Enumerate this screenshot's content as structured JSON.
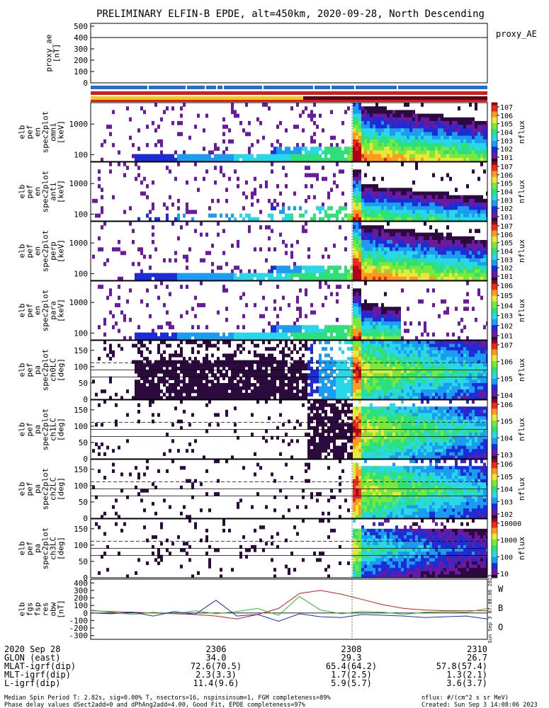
{
  "title": "PRELIMINARY ELFIN-B EPDE, alt=450km, 2020-09-28, North Descending",
  "colors": {
    "spectrogram_scale": [
      "#ffffff",
      "#2d0a3e",
      "#6a1aa0",
      "#1c2cd6",
      "#1c9cf0",
      "#28d8e8",
      "#2de07a",
      "#78e83a",
      "#e8e83a",
      "#ff9a1e",
      "#ee2a18",
      "#b0001a"
    ],
    "orbit_bar_blue": "#1a6fd8",
    "orbit_bar_yellow": "#f2c81a",
    "orbit_bar_red": "#e01818",
    "orbit_bar_dark": "#5a0014",
    "fgm_w": "#dd1a1a",
    "fgm_b": "#2fbf2f",
    "fgm_o": "#1a28dd"
  },
  "panels": {
    "proxy_ae": {
      "ylabel": "proxy_ae\n[nT]",
      "legend": "proxy_AE",
      "yticks": [
        "500",
        "400",
        "300",
        "200",
        "100",
        "0"
      ]
    },
    "spectrograms": [
      {
        "ylabel": "elb\npef\nen\nspec2plot\nomni\n[keV]",
        "yticks": [
          "1000",
          "100"
        ],
        "cbar_ticks": [
          "107",
          "106",
          "105",
          "104",
          "103",
          "102",
          "101"
        ],
        "cbar_label": "nflux"
      },
      {
        "ylabel": "elb\npef\nen\nspec2plot\nanti\n[keV]",
        "yticks": [
          "1000",
          "100"
        ],
        "cbar_ticks": [
          "107",
          "106",
          "105",
          "104",
          "103",
          "102",
          "101"
        ],
        "cbar_label": "nflux"
      },
      {
        "ylabel": "elb\npef\nen\nspec2plot\nperp\n[keV]",
        "yticks": [
          "1000",
          "100"
        ],
        "cbar_ticks": [
          "107",
          "106",
          "105",
          "104",
          "103",
          "102",
          "101"
        ],
        "cbar_label": "nflux"
      },
      {
        "ylabel": "elb\npef\nen\nspec2plot\npara\n[keV]",
        "yticks": [
          "1000",
          "100"
        ],
        "cbar_ticks": [
          "106",
          "105",
          "104",
          "103",
          "102",
          "101"
        ],
        "cbar_label": "nflux"
      },
      {
        "ylabel": "elb\npef\npa\nspec2plot\nch0LC\n[deg]",
        "yticks": [
          "150",
          "100",
          "50",
          "0"
        ],
        "cbar_ticks": [
          "107",
          "106",
          "105",
          "104"
        ],
        "cbar_label": "nflux"
      },
      {
        "ylabel": "elb\npef\npa\nspec2plot\nch1LC\n[deg]",
        "yticks": [
          "150",
          "100",
          "50",
          "0"
        ],
        "cbar_ticks": [
          "106",
          "105",
          "104",
          "103"
        ],
        "cbar_label": "nflux"
      },
      {
        "ylabel": "elb\npef\npa\nspec2plot\nch2LC\n[deg]",
        "yticks": [
          "150",
          "100",
          "50",
          "0"
        ],
        "cbar_ticks": [
          "106",
          "105",
          "104",
          "103",
          "102"
        ],
        "cbar_label": "nflux"
      },
      {
        "ylabel": "elb\npef\npa\nspec2plot\nch3LC\n[deg]",
        "yticks": [
          "150",
          "100",
          "50",
          "0"
        ],
        "cbar_ticks": [
          "10000",
          "1000",
          "100",
          "10"
        ],
        "cbar_label": "nflux"
      }
    ],
    "fgm": {
      "ylabel": "elb\nfgs\nfsp\nres\nobw\n[nT]",
      "yticks": [
        "400",
        "300",
        "200",
        "100",
        "0",
        "-100",
        "-200",
        "-300"
      ],
      "legend": [
        "W",
        "B",
        "O"
      ],
      "side_note": "Sun Sep 3 07:08:06 2023"
    }
  },
  "footer": {
    "rows": [
      {
        "label": "2020 Sep 28",
        "values": [
          "2306",
          "2308",
          "2310"
        ]
      },
      {
        "label": "GLON (east)",
        "values": [
          "34.0",
          "29.3",
          "26.7"
        ]
      },
      {
        "label": "MLAT-igrf(dip)",
        "values": [
          "72.6(70.5)",
          "65.4(64.2)",
          "57.8(57.4)"
        ]
      },
      {
        "label": "MLT-igrf(dip)",
        "values": [
          "2.3(3.3)",
          "1.7(2.5)",
          "1.3(2.1)"
        ]
      },
      {
        "label": "L-igrf(dip)",
        "values": [
          "11.4(9.6)",
          "5.9(5.7)",
          "3.6(3.7)"
        ]
      }
    ],
    "note_left_1": "Median Spin Period T: 2.82s, sig=0.00% T, nsectors=16, nspinsinsum=1, FGM completeness=89%",
    "note_left_2": "Phase delay values dSect2add=0 and dPhAng2add=4.00, Good Fit, EPDE completeness=97%",
    "note_right_1": "nflux: #/(cm^2 s sr MeV)",
    "note_right_2": "Created: Sun Sep  3 14:08:06 2023"
  },
  "chart_data": [
    {
      "type": "line",
      "name": "proxy_ae",
      "x": [
        "2306",
        "2308",
        "2310"
      ],
      "y": [
        400,
        400,
        400
      ],
      "ylim": [
        0,
        500
      ]
    },
    {
      "type": "heatmap",
      "name": "omni energy spectrogram",
      "xlim": [
        "2305",
        "2310"
      ],
      "ylim": [
        60,
        5000
      ],
      "yscale": "log",
      "z_range": [
        10,
        10000000
      ]
    },
    {
      "type": "heatmap",
      "name": "anti energy spectrogram",
      "xlim": [
        "2305",
        "2310"
      ],
      "ylim": [
        60,
        5000
      ],
      "yscale": "log",
      "z_range": [
        10,
        10000000
      ]
    },
    {
      "type": "heatmap",
      "name": "perp energy spectrogram",
      "xlim": [
        "2305",
        "2310"
      ],
      "ylim": [
        60,
        5000
      ],
      "yscale": "log",
      "z_range": [
        10,
        10000000
      ]
    },
    {
      "type": "heatmap",
      "name": "para energy spectrogram",
      "xlim": [
        "2305",
        "2310"
      ],
      "ylim": [
        60,
        5000
      ],
      "yscale": "log",
      "z_range": [
        10,
        1000000
      ]
    },
    {
      "type": "heatmap",
      "name": "ch0LC pitch angle",
      "ylim": [
        0,
        180
      ],
      "z_range": [
        10000,
        10000000
      ]
    },
    {
      "type": "heatmap",
      "name": "ch1LC pitch angle",
      "ylim": [
        0,
        180
      ],
      "z_range": [
        1000,
        1000000
      ]
    },
    {
      "type": "heatmap",
      "name": "ch2LC pitch angle",
      "ylim": [
        0,
        180
      ],
      "z_range": [
        100,
        1000000
      ]
    },
    {
      "type": "heatmap",
      "name": "ch3LC pitch angle",
      "ylim": [
        0,
        180
      ],
      "z_range": [
        10,
        10000
      ]
    },
    {
      "type": "line",
      "name": "fgm dB",
      "ylim": [
        -350,
        450
      ],
      "series": [
        {
          "name": "W",
          "y": [
            30,
            20,
            10,
            0,
            -10,
            -20,
            -40,
            -80,
            -20,
            60,
            260,
            300,
            250,
            180,
            110,
            60,
            40,
            30,
            30,
            30
          ]
        },
        {
          "name": "B",
          "y": [
            40,
            10,
            -20,
            10,
            -10,
            30,
            -10,
            20,
            60,
            -30,
            220,
            40,
            -10,
            20,
            10,
            -20,
            10,
            20,
            10,
            60
          ]
        },
        {
          "name": "O",
          "y": [
            0,
            -10,
            10,
            -40,
            20,
            -20,
            170,
            -40,
            -20,
            -110,
            -10,
            -50,
            -60,
            -20,
            -30,
            -40,
            -60,
            -50,
            -40,
            -80
          ]
        }
      ]
    }
  ]
}
